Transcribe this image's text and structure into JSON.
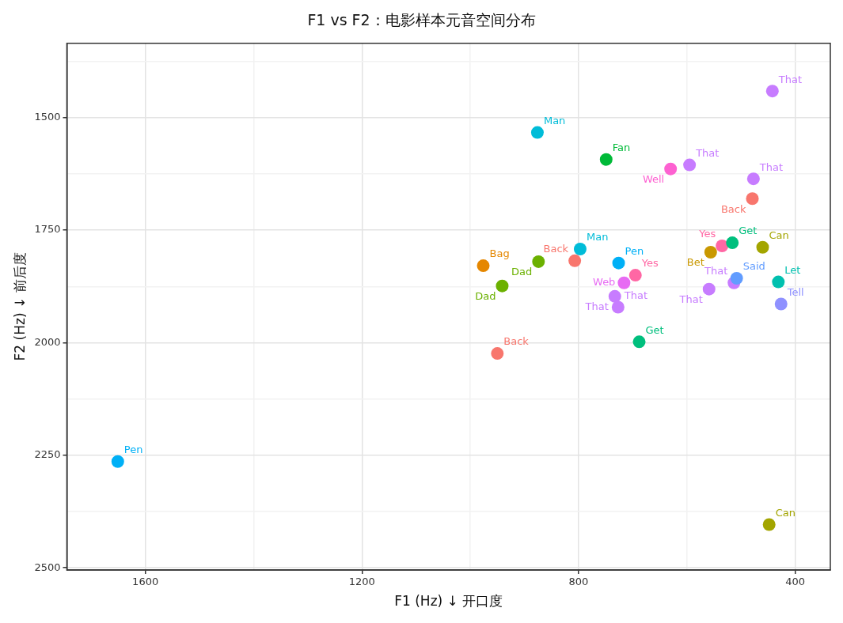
{
  "chart_data": {
    "type": "scatter",
    "title": "F1 vs F2：电影样本元音空间分布",
    "xlabel": "F1 (Hz) ↓ 开口度",
    "ylabel": "F2 (Hz) ↓ 前后度",
    "xlim": [
      1745,
      335
    ],
    "ylim": [
      2505,
      1335
    ],
    "xticks": [
      {
        "value": 1600,
        "label": "1600"
      },
      {
        "value": 1400,
        "label": null
      },
      {
        "value": 1200,
        "label": "1200"
      },
      {
        "value": 1000,
        "label": null
      },
      {
        "value": 800,
        "label": "800"
      },
      {
        "value": 600,
        "label": null
      },
      {
        "value": 400,
        "label": "400"
      }
    ],
    "yticks": [
      {
        "value": 1375,
        "label": null
      },
      {
        "value": 1500,
        "label": "1500"
      },
      {
        "value": 1625,
        "label": null
      },
      {
        "value": 1750,
        "label": "1750"
      },
      {
        "value": 1875,
        "label": null
      },
      {
        "value": 2000,
        "label": "2000"
      },
      {
        "value": 2125,
        "label": null
      },
      {
        "value": 2250,
        "label": "2250"
      },
      {
        "value": 2375,
        "label": null
      },
      {
        "value": 2500,
        "label": "2500"
      }
    ],
    "grid": true,
    "legend": false,
    "marker": "circle",
    "series": [
      {
        "name": "Back",
        "color": "#f8766d",
        "x": [
          950,
          807,
          479
        ],
        "values": [
          2024,
          1818,
          1680
        ]
      },
      {
        "name": "Bag",
        "color": "#e58700",
        "x": [
          976
        ],
        "values": [
          1829
        ]
      },
      {
        "name": "Bet",
        "color": "#c99800",
        "x": [
          556
        ],
        "values": [
          1799
        ]
      },
      {
        "name": "Can",
        "color": "#a3a500",
        "x": [
          460,
          448
        ],
        "values": [
          1788,
          2404
        ]
      },
      {
        "name": "Dad",
        "color": "#6bb100",
        "x": [
          874,
          941
        ],
        "values": [
          1820,
          1874
        ]
      },
      {
        "name": "Fan",
        "color": "#00ba38",
        "x": [
          749
        ],
        "values": [
          1593
        ]
      },
      {
        "name": "Get",
        "color": "#00bf7d",
        "x": [
          516,
          688
        ],
        "values": [
          1778,
          1998
        ]
      },
      {
        "name": "Let",
        "color": "#00c0af",
        "x": [
          431
        ],
        "values": [
          1865
        ]
      },
      {
        "name": "Man",
        "color": "#00bcd8",
        "x": [
          876,
          797
        ],
        "values": [
          1533,
          1792
        ]
      },
      {
        "name": "Pen",
        "color": "#00b0f6",
        "x": [
          1651,
          726
        ],
        "values": [
          2264,
          1823
        ]
      },
      {
        "name": "Said",
        "color": "#619cff",
        "x": [
          508
        ],
        "values": [
          1857
        ]
      },
      {
        "name": "Tell",
        "color": "#8f91ff",
        "x": [
          426
        ],
        "values": [
          1914
        ]
      },
      {
        "name": "That",
        "color": "#c77cff",
        "x": [
          733,
          727,
          559,
          513,
          595,
          477,
          442
        ],
        "values": [
          1897,
          1921,
          1881,
          1867,
          1605,
          1636,
          1441
        ]
      },
      {
        "name": "Web",
        "color": "#e76bf3",
        "x": [
          716
        ],
        "values": [
          1867
        ]
      },
      {
        "name": "Well",
        "color": "#fd61d1",
        "x": [
          630
        ],
        "values": [
          1614
        ]
      },
      {
        "name": "Yes",
        "color": "#ff67a4",
        "x": [
          695,
          535
        ],
        "values": [
          1850,
          1785
        ]
      }
    ]
  }
}
